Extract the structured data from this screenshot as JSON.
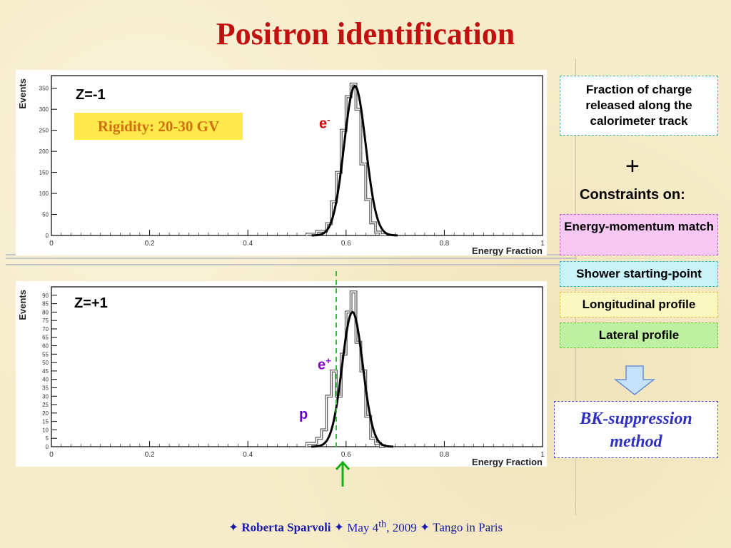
{
  "slide": {
    "title": "Positron identification",
    "rigidity_label": "Rigidity: 20-30 GV",
    "right_panel": {
      "box1": "Fraction of charge released along the calorimeter track",
      "plus": "+",
      "constraints": "Constraints on:",
      "criteria": [
        {
          "label": "Energy-momentum match",
          "bg": "#f7c8f4"
        },
        {
          "label": "Shower starting-point",
          "bg": "#c9f3f9"
        },
        {
          "label": "Longitudinal profile",
          "bg": "#fbf7c0"
        },
        {
          "label": "Lateral profile",
          "bg": "#bdf0a0"
        }
      ],
      "method": "BK-suppression method"
    },
    "footer": {
      "author": "Roberta Sparvoli",
      "date_pre": "May 4",
      "date_sup": "th",
      "date_post": ", 2009",
      "event": "Tango in Paris",
      "separator": "✦"
    },
    "colors": {
      "title": "#c01010",
      "electron_label": "#cc0000",
      "positron_label": "#8000c0",
      "proton_label": "#6a00c8",
      "cut_line": "#22cc22",
      "arrow": "#16b016"
    }
  },
  "chart_data": [
    {
      "type": "line",
      "panel_label": "Z=-1",
      "particle_label": "e",
      "particle_charge": "-",
      "xlabel": "Energy Fraction",
      "ylabel": "Events",
      "xlim": [
        0,
        1
      ],
      "ylim": [
        0,
        380
      ],
      "xticks": [
        "0",
        "0.2",
        "0.4",
        "0.6",
        "0.8",
        "1"
      ],
      "yticks": [
        "0",
        "50",
        "100",
        "150",
        "200",
        "250",
        "300",
        "350"
      ],
      "hist_bins": [
        0.52,
        0.54,
        0.56,
        0.57,
        0.58,
        0.59,
        0.6,
        0.61,
        0.62,
        0.63,
        0.64,
        0.65,
        0.66,
        0.67,
        0.68
      ],
      "hist_counts": [
        3,
        10,
        28,
        80,
        150,
        250,
        330,
        360,
        300,
        170,
        85,
        30,
        8,
        2,
        0
      ],
      "gaussian": {
        "mean": 0.618,
        "sigma": 0.022,
        "amplitude": 355
      }
    },
    {
      "type": "line",
      "panel_label": "Z=+1",
      "particle_label": "e",
      "particle_charge": "+",
      "background_label": "p",
      "xlabel": "Energy Fraction",
      "ylabel": "Events",
      "xlim": [
        0,
        1
      ],
      "ylim": [
        0,
        95
      ],
      "xticks": [
        "0",
        "0.2",
        "0.4",
        "0.6",
        "0.8",
        "1"
      ],
      "yticks": [
        "0",
        "5",
        "10",
        "15",
        "20",
        "25",
        "30",
        "35",
        "40",
        "45",
        "50",
        "55",
        "60",
        "65",
        "70",
        "75",
        "80",
        "85",
        "90"
      ],
      "hist_bins": [
        0.52,
        0.54,
        0.55,
        0.56,
        0.57,
        0.58,
        0.59,
        0.6,
        0.61,
        0.62,
        0.63,
        0.64,
        0.65,
        0.66,
        0.67,
        0.68
      ],
      "hist_counts": [
        2,
        5,
        10,
        30,
        45,
        30,
        55,
        80,
        92,
        62,
        45,
        18,
        5,
        2,
        0,
        0
      ],
      "gaussian": {
        "mean": 0.613,
        "sigma": 0.021,
        "amplitude": 80
      },
      "cut_x": 0.58
    }
  ]
}
